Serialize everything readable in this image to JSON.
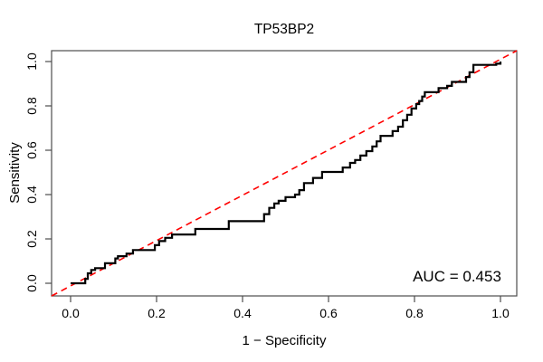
{
  "title": "TP53BP2",
  "xlabel": "1 − Specificity",
  "ylabel": "Sensitivity",
  "auc_label": "AUC = 0.453",
  "colors": {
    "background": "#ffffff",
    "curve": "#000000",
    "diagonal": "#ff0000",
    "axis": "#4d4d4d",
    "text": "#000000"
  },
  "chart_data": {
    "type": "line",
    "subtype": "roc-step-curve",
    "title": "TP53BP2",
    "xlabel": "1 − Specificity",
    "ylabel": "Sensitivity",
    "xlim": [
      0,
      1
    ],
    "ylim": [
      0,
      1
    ],
    "grid": false,
    "legend": "none",
    "x_ticks": [
      0.0,
      0.2,
      0.4,
      0.6,
      0.8,
      1.0
    ],
    "y_ticks": [
      0.0,
      0.2,
      0.4,
      0.6,
      0.8,
      1.0
    ],
    "x_tick_labels": [
      "0.0",
      "0.2",
      "0.4",
      "0.6",
      "0.8",
      "1.0"
    ],
    "y_tick_labels": [
      "0.0",
      "0.2",
      "0.4",
      "0.6",
      "0.8",
      "1.0"
    ],
    "auc": 0.453,
    "annotations": [
      {
        "text": "AUC = 0.453",
        "x": 0.9,
        "y": 0.03,
        "anchor": "middle"
      }
    ],
    "series": [
      {
        "name": "ROC curve",
        "style": "step",
        "color": "#000000",
        "line_width": 2.2,
        "points": [
          [
            0.0,
            0.0
          ],
          [
            0.034,
            0.02
          ],
          [
            0.04,
            0.045
          ],
          [
            0.048,
            0.06
          ],
          [
            0.057,
            0.068
          ],
          [
            0.08,
            0.09
          ],
          [
            0.104,
            0.112
          ],
          [
            0.11,
            0.122
          ],
          [
            0.13,
            0.134
          ],
          [
            0.145,
            0.15
          ],
          [
            0.196,
            0.172
          ],
          [
            0.206,
            0.19
          ],
          [
            0.22,
            0.205
          ],
          [
            0.236,
            0.22
          ],
          [
            0.29,
            0.245
          ],
          [
            0.368,
            0.28
          ],
          [
            0.45,
            0.312
          ],
          [
            0.462,
            0.34
          ],
          [
            0.474,
            0.36
          ],
          [
            0.484,
            0.372
          ],
          [
            0.5,
            0.388
          ],
          [
            0.522,
            0.4
          ],
          [
            0.532,
            0.42
          ],
          [
            0.543,
            0.452
          ],
          [
            0.564,
            0.475
          ],
          [
            0.585,
            0.502
          ],
          [
            0.633,
            0.522
          ],
          [
            0.65,
            0.543
          ],
          [
            0.662,
            0.556
          ],
          [
            0.674,
            0.576
          ],
          [
            0.688,
            0.596
          ],
          [
            0.702,
            0.617
          ],
          [
            0.712,
            0.64
          ],
          [
            0.721,
            0.665
          ],
          [
            0.749,
            0.686
          ],
          [
            0.762,
            0.706
          ],
          [
            0.773,
            0.735
          ],
          [
            0.783,
            0.76
          ],
          [
            0.793,
            0.788
          ],
          [
            0.804,
            0.808
          ],
          [
            0.811,
            0.822
          ],
          [
            0.818,
            0.842
          ],
          [
            0.824,
            0.862
          ],
          [
            0.856,
            0.88
          ],
          [
            0.876,
            0.89
          ],
          [
            0.887,
            0.908
          ],
          [
            0.92,
            0.93
          ],
          [
            0.928,
            0.952
          ],
          [
            0.937,
            0.985
          ],
          [
            0.99,
            0.99
          ],
          [
            1.0,
            1.0
          ]
        ]
      },
      {
        "name": "chance diagonal",
        "style": "dashed",
        "color": "#ff0000",
        "line_width": 1.6,
        "points": [
          [
            0,
            0
          ],
          [
            1,
            1
          ]
        ]
      }
    ]
  }
}
